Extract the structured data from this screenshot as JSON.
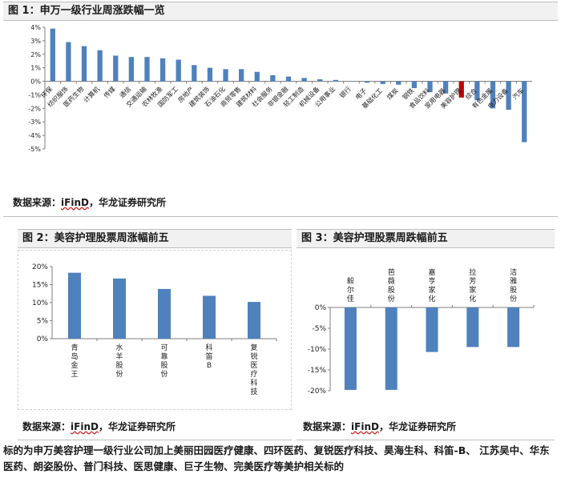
{
  "fig1": {
    "title": "图 1：申万一级行业周涨跌幅一览",
    "source_label": "数据来源：",
    "source_name": "iFinD",
    "source_rest": "，华龙证券研究所"
  },
  "fig2": {
    "title": "图 2：美容护理股票周涨幅前五",
    "source_label": "数据来源：",
    "source_name": "iFinD",
    "source_rest": "，华龙证券研究所"
  },
  "fig3": {
    "title": "图 3：美容护理股票周跌幅前五",
    "source_label": "数据来源：",
    "source_name": "iFinD",
    "source_rest": "，华龙证券研究所"
  },
  "footer": {
    "text": "标的为申万美容护理一级行业公司加上美丽田园医疗健康、四环医药、复锐医疗科技、昊海生科、科笛-B、 江苏吴中、华东医药、朗姿股份、普门科技、医思健康、巨子生物、完美医疗等美护相关标的"
  },
  "colors": {
    "bar": "#4f81bd",
    "highlight": "#c00000",
    "axis": "#7f7f7f"
  },
  "chart_data": [
    {
      "type": "bar",
      "title": "申万一级行业周涨跌幅一览",
      "categories": [
        "环保",
        "纺织服饰",
        "医药生物",
        "计算机",
        "传媒",
        "通信",
        "交通运输",
        "农林牧渔",
        "国防军工",
        "房地产",
        "建筑装饰",
        "石油石化",
        "商贸零售",
        "建筑材料",
        "社会服务",
        "非银金融",
        "轻工制造",
        "机械设备",
        "公用事业",
        "银行",
        "电子",
        "基础化工",
        "煤炭",
        "钢铁",
        "食品饮料",
        "家用电器",
        "美容护理",
        "综合",
        "有色金属",
        "电力设备",
        "汽车"
      ],
      "values": [
        3.9,
        2.9,
        2.6,
        2.3,
        1.9,
        1.8,
        1.8,
        1.7,
        1.6,
        1.2,
        1.0,
        0.9,
        0.9,
        0.7,
        0.45,
        0.35,
        0.25,
        0.15,
        0.1,
        0.0,
        -0.1,
        -0.2,
        -0.25,
        -0.5,
        -0.8,
        -0.9,
        -1.2,
        -1.4,
        -2.0,
        -2.1,
        -4.5
      ],
      "highlight": "美容护理",
      "ylim": [
        -5,
        4
      ],
      "yticks": [
        "4%",
        "3%",
        "2%",
        "1%",
        "0%",
        "-1%",
        "-2%",
        "-3%",
        "-4%",
        "-5%"
      ]
    },
    {
      "type": "bar",
      "title": "美容护理股票周涨幅前五",
      "categories": [
        "青岛金王",
        "水羊股份",
        "可靠股份",
        "科笛B",
        "复锐医疗科技"
      ],
      "values": [
        18.3,
        16.7,
        13.8,
        11.9,
        10.2
      ],
      "ylim": [
        0,
        20
      ],
      "yticks": [
        "20%",
        "15%",
        "10%",
        "5%",
        "0%"
      ]
    },
    {
      "type": "bar",
      "title": "美容护理股票周跌幅前五",
      "categories": [
        "毅尔佳",
        "芭薇股份",
        "嘉亨家化",
        "拉芳家化",
        "洁雅股份"
      ],
      "values": [
        -19.8,
        -19.8,
        -10.7,
        -9.5,
        -9.5
      ],
      "ylim": [
        -20,
        0
      ],
      "yticks": [
        "0%",
        "-5%",
        "-10%",
        "-15%",
        "-20%"
      ]
    }
  ]
}
